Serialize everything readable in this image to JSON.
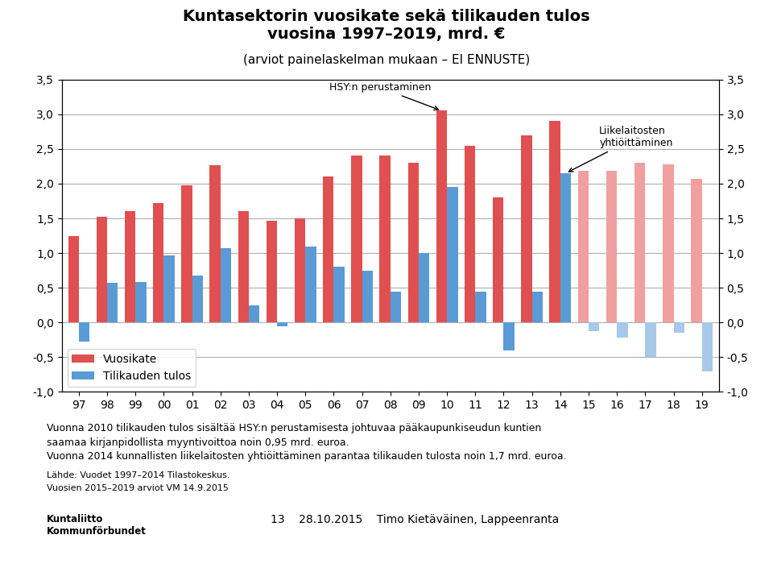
{
  "chart_data": {
    "type": "bar",
    "title": "Kuntasektorin vuosikate sekä tilikauden tulos\nvuosina 1997–2019, mrd. €",
    "subtitle": "(arviot painelaskelman mukaan – EI ENNUSTE)",
    "categories": [
      "97",
      "98",
      "99",
      "00",
      "01",
      "02",
      "03",
      "04",
      "05",
      "06",
      "07",
      "08",
      "09",
      "10",
      "11",
      "12",
      "13",
      "14",
      "15",
      "16",
      "17",
      "18",
      "19"
    ],
    "series": [
      {
        "name": "Vuosikate",
        "color": "#E05050",
        "colors": [
          "#E05050",
          "#E05050",
          "#E05050",
          "#E05050",
          "#E05050",
          "#E05050",
          "#E05050",
          "#E05050",
          "#E05050",
          "#E05050",
          "#E05050",
          "#E05050",
          "#E05050",
          "#E05050",
          "#E05050",
          "#E05050",
          "#E05050",
          "#E05050",
          "#F0A0A0",
          "#F0A0A0",
          "#F0A0A0",
          "#F0A0A0",
          "#F0A0A0"
        ],
        "values": [
          1.25,
          1.52,
          1.6,
          1.72,
          1.98,
          2.27,
          1.6,
          1.47,
          1.5,
          2.1,
          2.4,
          2.4,
          2.3,
          3.05,
          2.55,
          1.8,
          2.7,
          2.9,
          2.18,
          2.18,
          2.3,
          2.28,
          2.07
        ]
      },
      {
        "name": "Tilikauden tulos",
        "color": "#5B9BD5",
        "colors": [
          "#5B9BD5",
          "#5B9BD5",
          "#5B9BD5",
          "#5B9BD5",
          "#5B9BD5",
          "#5B9BD5",
          "#5B9BD5",
          "#5B9BD5",
          "#5B9BD5",
          "#5B9BD5",
          "#5B9BD5",
          "#5B9BD5",
          "#5B9BD5",
          "#5B9BD5",
          "#5B9BD5",
          "#5B9BD5",
          "#5B9BD5",
          "#5B9BD5",
          "#A8C8E8",
          "#A8C8E8",
          "#A8C8E8",
          "#A8C8E8",
          "#A8C8E8"
        ],
        "values": [
          -0.28,
          0.57,
          0.58,
          0.97,
          0.68,
          1.07,
          0.25,
          -0.05,
          1.1,
          0.8,
          0.75,
          0.45,
          1.0,
          1.95,
          0.45,
          -0.4,
          0.45,
          2.15,
          -0.12,
          -0.22,
          -0.5,
          -0.15,
          -0.7
        ]
      }
    ],
    "ylim": [
      -1.0,
      3.5
    ],
    "yticks": [
      {
        "value": -1.0,
        "label": "-1,0"
      },
      {
        "value": -0.5,
        "label": "-0,5"
      },
      {
        "value": 0.0,
        "label": "0,0"
      },
      {
        "value": 0.5,
        "label": "0,5"
      },
      {
        "value": 1.0,
        "label": "1,0"
      },
      {
        "value": 1.5,
        "label": "1,5"
      },
      {
        "value": 2.0,
        "label": "2,0"
      },
      {
        "value": 2.5,
        "label": "2,5"
      },
      {
        "value": 3.0,
        "label": "3,0"
      },
      {
        "value": 3.5,
        "label": "3,5"
      }
    ],
    "y2lim": [
      -1.0,
      3.5
    ],
    "y2ticks": [
      {
        "value": -1.0,
        "label": "-1,0"
      },
      {
        "value": -0.5,
        "label": "-0,5"
      },
      {
        "value": 0.0,
        "label": "0,0"
      },
      {
        "value": 0.5,
        "label": "0,5"
      },
      {
        "value": 1.0,
        "label": "1,0"
      },
      {
        "value": 1.5,
        "label": "1,5"
      },
      {
        "value": 2.0,
        "label": "2,0"
      },
      {
        "value": 2.5,
        "label": "2,5"
      },
      {
        "value": 3.0,
        "label": "3,0"
      },
      {
        "value": 3.5,
        "label": "3,5"
      }
    ],
    "grid": true,
    "legend": "lower left",
    "annotations": [
      {
        "text": "HSY:n perustaminen",
        "x": "10",
        "y": 3.05,
        "series": "Vuosikate"
      },
      {
        "text": "Liikelaitosten\nyhtiöittäminen",
        "x": "14",
        "y": 2.15,
        "series": "Tilikauden tulos"
      }
    ],
    "footnotes": [
      "Vuonna 2010 tilikauden tulos sisältää HSY:n perustamisesta johtuvaa pääkaupunkiseudun kuntien",
      "saamaa kirjanpidollista myyntivoittoa noin 0,95 mrd. euroa.",
      "Vuonna 2014 kunnallisten liikelaitosten yhtiöittäminen parantaa tilikauden tulosta noin 1,7 mrd. euroa."
    ],
    "source": [
      "Lähde: Vuodet 1997–2014 Tilastokeskus.",
      "Vuosien 2015–2019 arviot VM 14.9.2015"
    ],
    "footer": [
      "Kuntaliitto\nKommunförbundet",
      "13    28.10.2015    Timo Kietäväinen, Lappeenranta"
    ]
  }
}
